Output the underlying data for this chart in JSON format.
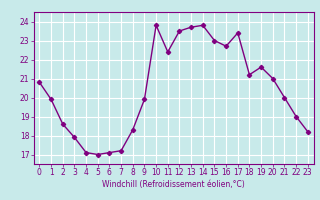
{
  "x": [
    0,
    1,
    2,
    3,
    4,
    5,
    6,
    7,
    8,
    9,
    10,
    11,
    12,
    13,
    14,
    15,
    16,
    17,
    18,
    19,
    20,
    21,
    22,
    23
  ],
  "y": [
    20.8,
    19.9,
    18.6,
    17.9,
    17.1,
    17.0,
    17.1,
    17.2,
    18.3,
    19.9,
    23.8,
    22.4,
    23.5,
    23.7,
    23.8,
    23.0,
    22.7,
    23.4,
    21.2,
    21.6,
    21.0,
    20.0,
    19.0,
    18.2
  ],
  "line_color": "#800080",
  "marker": "D",
  "marker_size": 2.2,
  "bg_color": "#c8eaea",
  "grid_color": "#ffffff",
  "xlabel": "Windchill (Refroidissement éolien,°C)",
  "xlabel_color": "#800080",
  "tick_color": "#800080",
  "spine_color": "#800080",
  "ylim": [
    16.5,
    24.5
  ],
  "yticks": [
    17,
    18,
    19,
    20,
    21,
    22,
    23,
    24
  ],
  "xlim": [
    -0.5,
    23.5
  ],
  "xticks": [
    0,
    1,
    2,
    3,
    4,
    5,
    6,
    7,
    8,
    9,
    10,
    11,
    12,
    13,
    14,
    15,
    16,
    17,
    18,
    19,
    20,
    21,
    22,
    23
  ],
  "xlabel_fontsize": 5.5,
  "tick_labelsize": 5.5,
  "linewidth": 1.0
}
